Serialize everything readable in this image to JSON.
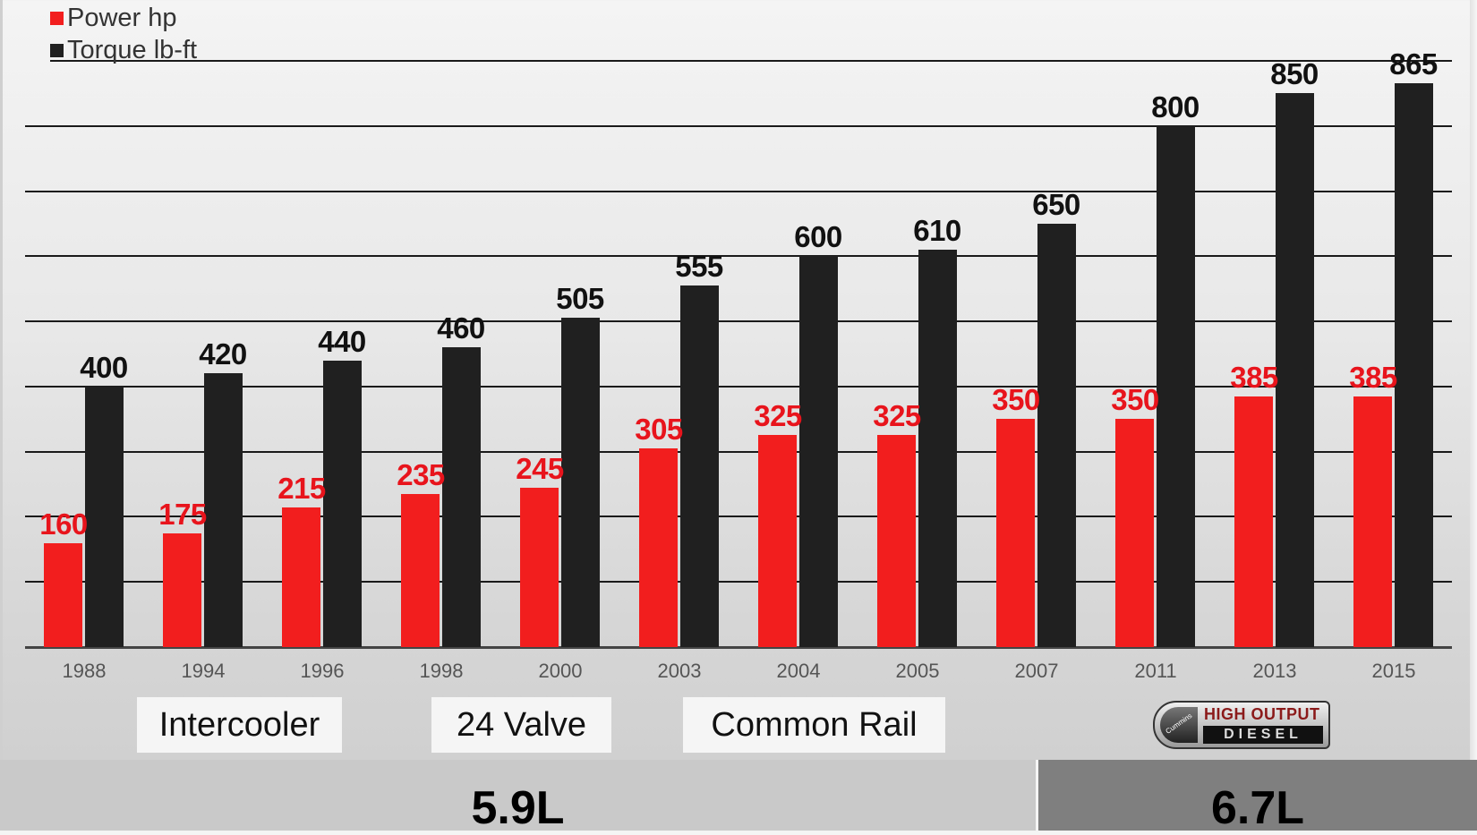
{
  "legend": [
    {
      "label": "Power  hp",
      "color": "#f21e1e"
    },
    {
      "label": "Torque lb-ft",
      "color": "#202020"
    }
  ],
  "features": [
    {
      "label": "Intercooler"
    },
    {
      "label": "24 Valve"
    },
    {
      "label": "Common Rail"
    }
  ],
  "logo": {
    "brand": "Cummins",
    "top": "HIGH OUTPUT",
    "bottom": "DIESEL"
  },
  "bands": [
    {
      "label": "5.9L"
    },
    {
      "label": "6.7L"
    }
  ],
  "colors": {
    "power": "#f21e1e",
    "torque": "#202020",
    "band_59": "#c9c9c9",
    "band_67": "#7f7f7f"
  },
  "chart_data": {
    "type": "bar",
    "title": "",
    "xlabel": "",
    "ylabel": "",
    "categories": [
      "1988",
      "1994",
      "1996",
      "1998",
      "2000",
      "2003",
      "2004",
      "2005",
      "2007",
      "2011",
      "2013",
      "2015"
    ],
    "series": [
      {
        "name": "Power  hp",
        "values": [
          160,
          175,
          215,
          235,
          245,
          305,
          325,
          325,
          350,
          350,
          385,
          385
        ]
      },
      {
        "name": "Torque lb-ft",
        "values": [
          400,
          420,
          440,
          460,
          505,
          555,
          600,
          610,
          650,
          800,
          850,
          865
        ]
      }
    ],
    "ylim": [
      0,
      900
    ],
    "grid": true,
    "gridlines": [
      0,
      100,
      200,
      300,
      400,
      500,
      600,
      700,
      800,
      900
    ],
    "legend_position": "top-left",
    "annotations": [
      "Intercooler",
      "24 Valve",
      "Common Rail",
      "HIGH OUTPUT DIESEL",
      "5.9L",
      "6.7L"
    ]
  }
}
